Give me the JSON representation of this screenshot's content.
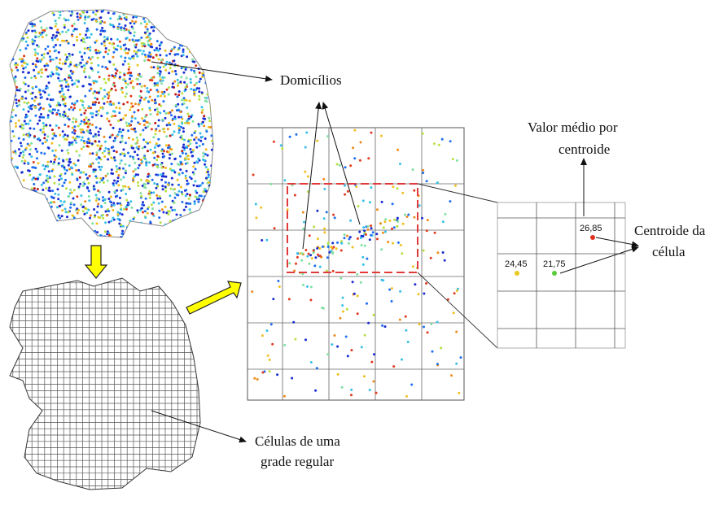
{
  "labels": {
    "domicilios": "Domicílios",
    "valor_medio_line1": "Valor médio por",
    "valor_medio_line2": "centroide",
    "centroide_line1": "Centroide da",
    "centroide_line2": "célula",
    "celulas_line1": "Células de uma",
    "celulas_line2": "grade regular"
  },
  "centroid_values": [
    {
      "value": "26,85",
      "color": "#e03020"
    },
    {
      "value": "24,45",
      "color": "#e8c81e"
    },
    {
      "value": "21,75",
      "color": "#58cc3a"
    }
  ],
  "colors": {
    "value_scale": [
      "#1a2bd0",
      "#1e6ef0",
      "#38c0e8",
      "#7fe0a0",
      "#b8e040",
      "#f0c020",
      "#f08a1c",
      "#e03a1e",
      "#c01818"
    ],
    "arrow_fill": "#ffff00",
    "selection_box": "#e03a3a",
    "grid_lines": "#555555"
  }
}
